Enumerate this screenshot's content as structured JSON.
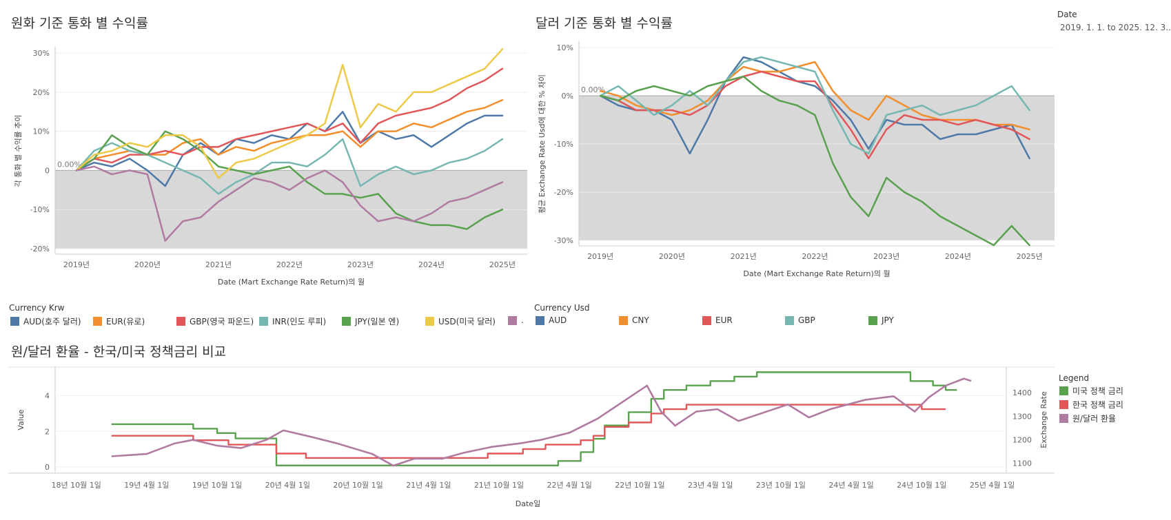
{
  "filter": {
    "label": "Date",
    "value": "2019. 1. 1. to 2025. 12. 3.."
  },
  "colors": {
    "AUD": "#4e79a7",
    "EUR": "#f28e2b",
    "GBP": "#e15759",
    "INR": "#76b7b2",
    "JPY": "#59a14f",
    "USD": "#edc948",
    "OTHER": "#b07aa1"
  },
  "charts": {
    "krw": {
      "title": "원화 기준 통화 별 수익률",
      "ylabel": "각 통화 별 수익률 추이",
      "xlabel": "Date (Mart Exchange Rate Return)의 월",
      "ref_label": "0.00%"
    },
    "usd": {
      "title": "달러 기준 통화 별 수익률",
      "ylabel": "평균 Exchange Rate Usd에 대한 % 차이",
      "xlabel": "Date (Mart Exchange Rate Return)의 월",
      "ref_label": "0.00%"
    },
    "policy": {
      "title": "원/달러 환율 - 한국/미국 정책금리 비교",
      "ylabel_left": "Value",
      "ylabel_right": "Exchange Rate",
      "xlabel": "Date일"
    }
  },
  "legend_krw": {
    "title": "Currency Krw",
    "items": [
      {
        "key": "AUD",
        "label": "AUD(호주 달러)"
      },
      {
        "key": "EUR",
        "label": "EUR(유로)"
      },
      {
        "key": "GBP",
        "label": "GBP(영국 파운드)"
      },
      {
        "key": "INR",
        "label": "INR(인도 루피)"
      },
      {
        "key": "JPY",
        "label": "JPY(일본 엔)"
      },
      {
        "key": "USD",
        "label": "USD(미국 달러)"
      },
      {
        "key": "OTHER",
        "label": "."
      }
    ]
  },
  "legend_usd": {
    "title": "Currency Usd",
    "items": [
      {
        "key": "AUD",
        "label": "AUD"
      },
      {
        "key": "EUR_CNY",
        "label": "CNY"
      },
      {
        "key": "GBP",
        "label": "EUR"
      },
      {
        "key": "INR",
        "label": "GBP"
      },
      {
        "key": "JPY",
        "label": "JPY"
      }
    ]
  },
  "legend_policy": {
    "title": "Legend",
    "items": [
      {
        "key": "us",
        "label": "미국 정책 금리",
        "color": "#59a14f"
      },
      {
        "key": "kr",
        "label": "한국 정책 금리",
        "color": "#e15759"
      },
      {
        "key": "fx",
        "label": "원/달러 환율",
        "color": "#b07aa1"
      }
    ]
  },
  "chart_data": [
    {
      "type": "line",
      "title": "원화 기준 통화 별 수익률",
      "xlabel": "Date (Mart Exchange Rate Return)의 월",
      "ylabel": "각 통화 별 수익률 추이",
      "x_ticks": [
        "2019년",
        "2020년",
        "2021년",
        "2022년",
        "2023년",
        "2024년",
        "2025년"
      ],
      "y_ticks": [
        "-20%",
        "-10%",
        "0",
        "10%",
        "20%",
        "30%"
      ],
      "ylim": [
        -20,
        30
      ],
      "xlim": [
        2018.7,
        2025.35
      ],
      "x": [
        2019.0,
        2019.25,
        2019.5,
        2019.75,
        2020.0,
        2020.25,
        2020.5,
        2020.75,
        2021.0,
        2021.25,
        2021.5,
        2021.75,
        2022.0,
        2022.25,
        2022.5,
        2022.75,
        2023.0,
        2023.25,
        2023.5,
        2023.75,
        2024.0,
        2024.25,
        2024.5,
        2024.75,
        2025.0
      ],
      "series": [
        {
          "name": "AUD(호주 달러)",
          "key": "AUD",
          "values": [
            0,
            2,
            1,
            3,
            0,
            -4,
            4,
            7,
            4,
            8,
            7,
            9,
            8,
            12,
            10,
            15,
            7,
            10,
            8,
            9,
            6,
            9,
            12,
            14,
            14
          ]
        },
        {
          "name": "EUR(유로)",
          "key": "EUR",
          "values": [
            0,
            3,
            4,
            5,
            4,
            4,
            7,
            8,
            4,
            6,
            5,
            7,
            8,
            9,
            9,
            10,
            6,
            10,
            10,
            12,
            11,
            13,
            15,
            16,
            18
          ]
        },
        {
          "name": "GBP(영국 파운드)",
          "key": "GBP",
          "values": [
            0,
            3,
            2,
            4,
            4,
            5,
            4,
            6,
            6,
            8,
            9,
            10,
            11,
            12,
            10,
            12,
            7,
            12,
            14,
            15,
            16,
            18,
            21,
            23,
            26
          ]
        },
        {
          "name": "INR(인도 루피)",
          "key": "INR",
          "values": [
            0,
            5,
            7,
            5,
            4,
            2,
            0,
            -2,
            -6,
            -3,
            -1,
            2,
            2,
            1,
            4,
            8,
            -4,
            -1,
            1,
            -1,
            0,
            2,
            3,
            5,
            8
          ]
        },
        {
          "name": "JPY(일본 엔)",
          "key": "JPY",
          "values": [
            0,
            3,
            9,
            6,
            4,
            10,
            8,
            5,
            1,
            0,
            -1,
            0,
            1,
            -3,
            -6,
            -6,
            -7,
            -6,
            -11,
            -13,
            -14,
            -14,
            -15,
            -12,
            -10
          ]
        },
        {
          "name": "USD(미국 달러)",
          "key": "USD",
          "values": [
            0,
            4,
            5,
            7,
            6,
            9,
            9,
            6,
            -2,
            2,
            3,
            5,
            7,
            9,
            12,
            27,
            11,
            17,
            15,
            20,
            20,
            22,
            24,
            26,
            31
          ]
        },
        {
          "name": ".",
          "key": "OTHER",
          "values": [
            0,
            1,
            -1,
            0,
            -1,
            -18,
            -13,
            -12,
            -8,
            -5,
            -2,
            -3,
            -5,
            -2,
            0,
            -3,
            -9,
            -13,
            -12,
            -13,
            -11,
            -8,
            -7,
            -5,
            -3
          ]
        }
      ]
    },
    {
      "type": "line",
      "title": "달러 기준 통화 별 수익률",
      "xlabel": "Date (Mart Exchange Rate Return)의 월",
      "ylabel": "평균 Exchange Rate Usd에 대한 % 차이",
      "x_ticks": [
        "2019년",
        "2020년",
        "2021년",
        "2022년",
        "2023년",
        "2024년",
        "2025년"
      ],
      "y_ticks": [
        "-30%",
        "-20%",
        "-10%",
        "0%",
        "10%"
      ],
      "ylim": [
        -30,
        10
      ],
      "xlim": [
        2018.7,
        2025.35
      ],
      "x": [
        2019.0,
        2019.25,
        2019.5,
        2019.75,
        2020.0,
        2020.25,
        2020.5,
        2020.75,
        2021.0,
        2021.25,
        2021.5,
        2021.75,
        2022.0,
        2022.25,
        2022.5,
        2022.75,
        2023.0,
        2023.25,
        2023.5,
        2023.75,
        2024.0,
        2024.25,
        2024.5,
        2024.75,
        2025.0
      ],
      "series": [
        {
          "name": "AUD",
          "key": "AUD",
          "values": [
            0,
            -2,
            -3,
            -3,
            -5,
            -12,
            -5,
            3,
            8,
            7,
            5,
            3,
            2,
            -1,
            -5,
            -11,
            -5,
            -6,
            -6,
            -9,
            -8,
            -8,
            -7,
            -6,
            -13
          ]
        },
        {
          "name": "CNY",
          "key": "EUR",
          "values": [
            1,
            0,
            -2,
            -3,
            -4,
            -3,
            -1,
            3,
            6,
            5,
            5,
            6,
            7,
            1,
            -3,
            -5,
            0,
            -2,
            -4,
            -5,
            -5,
            -5,
            -6,
            -6,
            -7
          ]
        },
        {
          "name": "EUR",
          "key": "GBP",
          "values": [
            0,
            -1,
            -3,
            -3,
            -3,
            -4,
            -2,
            2,
            4,
            5,
            4,
            3,
            3,
            -2,
            -7,
            -13,
            -7,
            -4,
            -5,
            -5,
            -6,
            -5,
            -6,
            -7,
            -9
          ]
        },
        {
          "name": "GBP",
          "key": "INR",
          "values": [
            0,
            2,
            -1,
            -4,
            -2,
            1,
            -2,
            3,
            7,
            8,
            7,
            6,
            5,
            -3,
            -10,
            -12,
            -4,
            -3,
            -2,
            -4,
            -3,
            -2,
            0,
            2,
            -3
          ]
        },
        {
          "name": "JPY",
          "key": "JPY",
          "values": [
            0,
            -1,
            1,
            2,
            1,
            0,
            2,
            3,
            4,
            1,
            -1,
            -2,
            -4,
            -14,
            -21,
            -25,
            -17,
            -20,
            -22,
            -25,
            -27,
            -29,
            -31,
            -27,
            -31
          ]
        }
      ]
    },
    {
      "type": "line",
      "title": "원/달러 환율 - 한국/미국 정책금리 비교",
      "xlabel": "Date일",
      "ylabel_left": "Value",
      "ylabel_right": "Exchange Rate",
      "x_ticks": [
        "18년 10월 1일",
        "19년 4월 1일",
        "19년 10월 1일",
        "20년 4월 1일",
        "20년 10월 1일",
        "21년 4월 1일",
        "21년 10월 1일",
        "22년 4월 1일",
        "22년 10월 1일",
        "23년 4월 1일",
        "23년 10월 1일",
        "24년 4월 1일",
        "24년 10월 1일",
        "25년 4월 1일"
      ],
      "y_ticks_left": [
        "0",
        "2",
        "4"
      ],
      "y_ticks_right": [
        "1100",
        "1200",
        "1300",
        "1400"
      ],
      "ylim_left": [
        -0.2,
        5.5
      ],
      "ylim_right": [
        1070,
        1500
      ],
      "series": [
        {
          "name": "미국 정책 금리",
          "key": "us",
          "axis": "left",
          "points": [
            [
              2019.0,
              2.4
            ],
            [
              2019.58,
              2.4
            ],
            [
              2019.58,
              2.15
            ],
            [
              2019.75,
              2.15
            ],
            [
              2019.75,
              1.9
            ],
            [
              2019.88,
              1.9
            ],
            [
              2019.88,
              1.6
            ],
            [
              2020.17,
              1.6
            ],
            [
              2020.17,
              0.08
            ],
            [
              2022.17,
              0.08
            ],
            [
              2022.17,
              0.33
            ],
            [
              2022.33,
              0.33
            ],
            [
              2022.33,
              0.83
            ],
            [
              2022.42,
              0.83
            ],
            [
              2022.42,
              1.58
            ],
            [
              2022.5,
              1.58
            ],
            [
              2022.5,
              2.33
            ],
            [
              2022.67,
              2.33
            ],
            [
              2022.67,
              3.08
            ],
            [
              2022.83,
              3.08
            ],
            [
              2022.83,
              3.83
            ],
            [
              2022.92,
              3.83
            ],
            [
              2022.92,
              4.33
            ],
            [
              2023.08,
              4.33
            ],
            [
              2023.08,
              4.58
            ],
            [
              2023.25,
              4.58
            ],
            [
              2023.25,
              4.83
            ],
            [
              2023.42,
              4.83
            ],
            [
              2023.42,
              5.08
            ],
            [
              2023.58,
              5.08
            ],
            [
              2023.58,
              5.33
            ],
            [
              2024.67,
              5.33
            ],
            [
              2024.67,
              4.83
            ],
            [
              2024.83,
              4.83
            ],
            [
              2024.83,
              4.58
            ],
            [
              2024.92,
              4.58
            ],
            [
              2024.92,
              4.33
            ],
            [
              2025.0,
              4.33
            ]
          ]
        },
        {
          "name": "한국 정책 금리",
          "key": "kr",
          "axis": "left",
          "points": [
            [
              2019.0,
              1.75
            ],
            [
              2019.58,
              1.75
            ],
            [
              2019.58,
              1.5
            ],
            [
              2019.83,
              1.5
            ],
            [
              2019.83,
              1.25
            ],
            [
              2020.17,
              1.25
            ],
            [
              2020.17,
              0.75
            ],
            [
              2020.38,
              0.75
            ],
            [
              2020.38,
              0.5
            ],
            [
              2021.67,
              0.5
            ],
            [
              2021.67,
              0.75
            ],
            [
              2021.92,
              0.75
            ],
            [
              2021.92,
              1.0
            ],
            [
              2022.08,
              1.0
            ],
            [
              2022.08,
              1.25
            ],
            [
              2022.33,
              1.25
            ],
            [
              2022.33,
              1.5
            ],
            [
              2022.42,
              1.5
            ],
            [
              2022.42,
              1.75
            ],
            [
              2022.5,
              1.75
            ],
            [
              2022.5,
              2.25
            ],
            [
              2022.67,
              2.25
            ],
            [
              2022.67,
              2.5
            ],
            [
              2022.83,
              2.5
            ],
            [
              2022.83,
              3.0
            ],
            [
              2022.92,
              3.0
            ],
            [
              2022.92,
              3.25
            ],
            [
              2023.08,
              3.25
            ],
            [
              2023.08,
              3.5
            ],
            [
              2024.75,
              3.5
            ],
            [
              2024.75,
              3.25
            ],
            [
              2024.92,
              3.25
            ]
          ]
        },
        {
          "name": "원/달러 환율",
          "key": "fx",
          "axis": "right",
          "points": [
            [
              2019.0,
              1130
            ],
            [
              2019.25,
              1140
            ],
            [
              2019.45,
              1185
            ],
            [
              2019.58,
              1200
            ],
            [
              2019.75,
              1175
            ],
            [
              2019.92,
              1165
            ],
            [
              2020.1,
              1200
            ],
            [
              2020.22,
              1240
            ],
            [
              2020.4,
              1215
            ],
            [
              2020.6,
              1185
            ],
            [
              2020.85,
              1140
            ],
            [
              2021.0,
              1090
            ],
            [
              2021.15,
              1120
            ],
            [
              2021.35,
              1120
            ],
            [
              2021.5,
              1145
            ],
            [
              2021.7,
              1170
            ],
            [
              2021.9,
              1185
            ],
            [
              2022.05,
              1200
            ],
            [
              2022.25,
              1230
            ],
            [
              2022.45,
              1290
            ],
            [
              2022.7,
              1390
            ],
            [
              2022.8,
              1430
            ],
            [
              2022.9,
              1320
            ],
            [
              2023.0,
              1260
            ],
            [
              2023.15,
              1320
            ],
            [
              2023.3,
              1330
            ],
            [
              2023.45,
              1280
            ],
            [
              2023.6,
              1310
            ],
            [
              2023.8,
              1350
            ],
            [
              2023.95,
              1295
            ],
            [
              2024.1,
              1330
            ],
            [
              2024.35,
              1370
            ],
            [
              2024.55,
              1385
            ],
            [
              2024.7,
              1320
            ],
            [
              2024.8,
              1380
            ],
            [
              2024.92,
              1430
            ],
            [
              2025.05,
              1460
            ],
            [
              2025.1,
              1450
            ]
          ]
        }
      ]
    }
  ]
}
